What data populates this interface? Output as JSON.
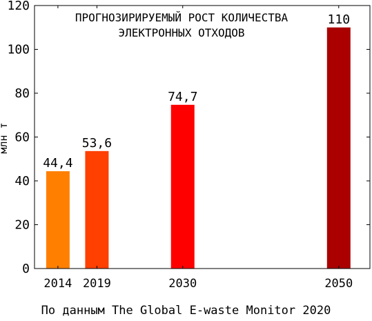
{
  "chart_data": {
    "type": "bar",
    "title": [
      "ПРОГНОЗИРИРУЕМЫЙ РОСТ КОЛИЧЕСТВА",
      "ЭЛЕКТРОННЫХ ОТХОДОВ"
    ],
    "xlabel": "",
    "ylabel": "млн т",
    "ylim": [
      0,
      120
    ],
    "yticks": [
      0,
      20,
      40,
      60,
      80,
      100,
      120
    ],
    "grid": false,
    "x_axis": "numeric years, bars placed at their year",
    "categories": [
      "2014",
      "2019",
      "2030",
      "2050"
    ],
    "values": [
      44.4,
      53.6,
      74.7,
      110
    ],
    "value_labels": [
      "44,4",
      "53,6",
      "74,7",
      "110"
    ],
    "colors": [
      "#ff8000",
      "#ff4000",
      "#ff0000",
      "#aa0000"
    ]
  },
  "source": "По данным The Global E-waste Monitor 2020"
}
